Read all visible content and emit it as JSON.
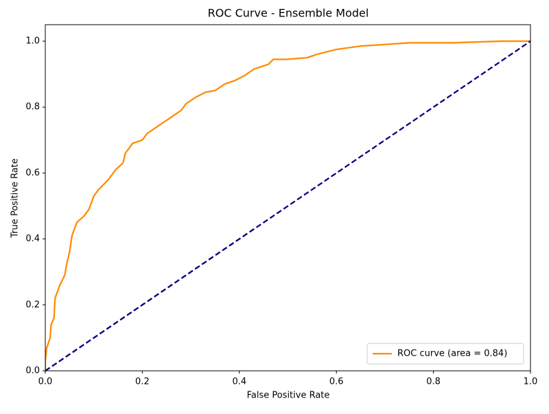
{
  "chart_data": {
    "type": "line",
    "title": "ROC Curve - Ensemble Model",
    "x_label": "False Positive Rate",
    "y_label": "True Positive Rate",
    "xlim": [
      0,
      1
    ],
    "ylim": [
      0,
      1.05
    ],
    "xticks": [
      {
        "value": 0,
        "label": "0.0"
      },
      0.2,
      0.4,
      0.6,
      0.8,
      {
        "value": 1,
        "label": "1.0"
      }
    ],
    "yticks": [
      {
        "value": 0,
        "label": "0.0"
      },
      0.2,
      0.4,
      0.6,
      0.8,
      {
        "value": 1,
        "label": "1.0"
      }
    ],
    "grid": false,
    "legend": "lower right",
    "series": [
      {
        "name": "ROC curve (area = 0.84)",
        "color": "#ff8c00",
        "linestyle": "solid",
        "x": [
          0,
          0,
          0.003,
          0.01,
          0.012,
          0.018,
          0.02,
          0.025,
          0.03,
          0.04,
          0.045,
          0.05,
          0.055,
          0.06,
          0.065,
          0.08,
          0.09,
          0.1,
          0.11,
          0.13,
          0.145,
          0.16,
          0.165,
          0.18,
          0.2,
          0.21,
          0.23,
          0.26,
          0.28,
          0.29,
          0.31,
          0.33,
          0.35,
          0.37,
          0.39,
          0.41,
          0.43,
          0.46,
          0.47,
          0.5,
          0.54,
          0.56,
          0.6,
          0.65,
          0.7,
          0.75,
          0.84,
          0.94,
          1
        ],
        "values": [
          0,
          0.03,
          0.07,
          0.1,
          0.14,
          0.16,
          0.22,
          0.24,
          0.26,
          0.29,
          0.33,
          0.36,
          0.41,
          0.43,
          0.45,
          0.47,
          0.49,
          0.53,
          0.55,
          0.58,
          0.61,
          0.63,
          0.66,
          0.69,
          0.7,
          0.72,
          0.74,
          0.77,
          0.79,
          0.81,
          0.83,
          0.845,
          0.85,
          0.87,
          0.88,
          0.895,
          0.915,
          0.93,
          0.945,
          0.945,
          0.95,
          0.96,
          0.975,
          0.985,
          0.99,
          0.995,
          0.995,
          1,
          1
        ]
      },
      {
        "color": "#000080",
        "linestyle": "dashed",
        "x": [
          0,
          1
        ],
        "values": [
          0,
          1
        ]
      }
    ]
  }
}
